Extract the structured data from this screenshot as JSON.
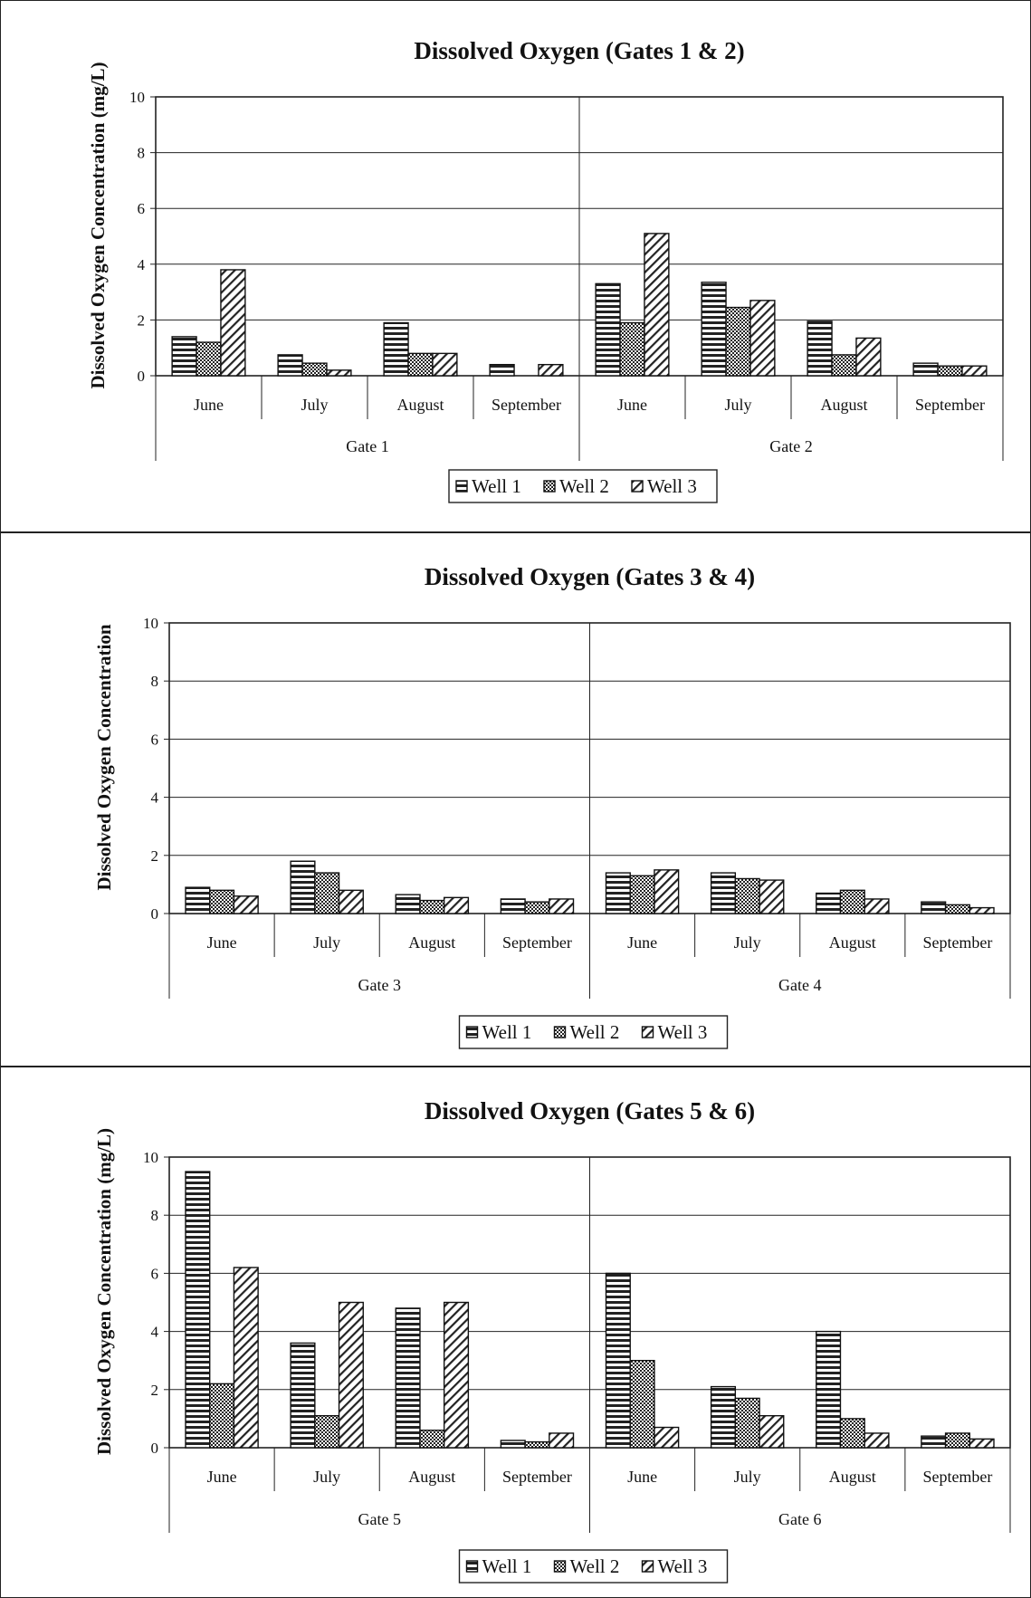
{
  "chart_data": [
    {
      "type": "bar",
      "title": "Dissolved Oxygen (Gates 1 & 2)",
      "ylabel": "Dissolved Oxygen Concentration (mg/L)",
      "xlabel": "",
      "ylim": [
        0,
        10
      ],
      "yticks": [
        0,
        2,
        4,
        6,
        8,
        10
      ],
      "grid": true,
      "legend_position": "bottom",
      "groups": [
        "Gate 1",
        "Gate 2"
      ],
      "categories": [
        "June",
        "July",
        "August",
        "September",
        "June",
        "July",
        "August",
        "September"
      ],
      "series": [
        {
          "name": "Well 1",
          "pattern": "horizontal-lines",
          "values": [
            1.4,
            0.75,
            1.9,
            0.4,
            3.3,
            3.35,
            1.95,
            0.45
          ]
        },
        {
          "name": "Well 2",
          "pattern": "crosshatch",
          "values": [
            1.2,
            0.45,
            0.8,
            0,
            1.9,
            2.45,
            0.75,
            0.35
          ]
        },
        {
          "name": "Well 3",
          "pattern": "diagonal-lines",
          "values": [
            3.8,
            0.2,
            0.8,
            0.4,
            5.1,
            2.7,
            1.35,
            0.35
          ]
        }
      ]
    },
    {
      "type": "bar",
      "title": "Dissolved Oxygen (Gates 3 & 4)",
      "ylabel": "Dissolved Oxygen Concentration",
      "xlabel": "",
      "ylim": [
        0,
        10
      ],
      "yticks": [
        0,
        2,
        4,
        6,
        8,
        10
      ],
      "grid": true,
      "legend_position": "bottom",
      "groups": [
        "Gate 3",
        "Gate 4"
      ],
      "categories": [
        "June",
        "July",
        "August",
        "September",
        "June",
        "July",
        "August",
        "September"
      ],
      "series": [
        {
          "name": "Well 1",
          "pattern": "horizontal-lines",
          "values": [
            0.9,
            1.8,
            0.65,
            0.5,
            1.4,
            1.4,
            0.7,
            0.4
          ]
        },
        {
          "name": "Well 2",
          "pattern": "crosshatch",
          "values": [
            0.8,
            1.4,
            0.45,
            0.4,
            1.3,
            1.2,
            0.8,
            0.3
          ]
        },
        {
          "name": "Well 3",
          "pattern": "diagonal-lines",
          "values": [
            0.6,
            0.8,
            0.55,
            0.5,
            1.5,
            1.15,
            0.5,
            0.2
          ]
        }
      ]
    },
    {
      "type": "bar",
      "title": "Dissolved Oxygen (Gates 5 & 6)",
      "ylabel": "Dissolved Oxygen Concentration (mg/L)",
      "xlabel": "",
      "ylim": [
        0,
        10
      ],
      "yticks": [
        0,
        2,
        4,
        6,
        8,
        10
      ],
      "grid": true,
      "legend_position": "bottom",
      "groups": [
        "Gate 5",
        "Gate 6"
      ],
      "categories": [
        "June",
        "July",
        "August",
        "September",
        "June",
        "July",
        "August",
        "September"
      ],
      "series": [
        {
          "name": "Well 1",
          "pattern": "horizontal-lines",
          "values": [
            9.5,
            3.6,
            4.8,
            0.25,
            6.0,
            2.1,
            4.0,
            0.4
          ]
        },
        {
          "name": "Well 2",
          "pattern": "crosshatch",
          "values": [
            2.2,
            1.1,
            0.6,
            0.2,
            3.0,
            1.7,
            1.0,
            0.5
          ]
        },
        {
          "name": "Well 3",
          "pattern": "diagonal-lines",
          "values": [
            6.2,
            5.0,
            5.0,
            0.5,
            0.7,
            1.1,
            0.5,
            0.3
          ]
        }
      ]
    }
  ]
}
